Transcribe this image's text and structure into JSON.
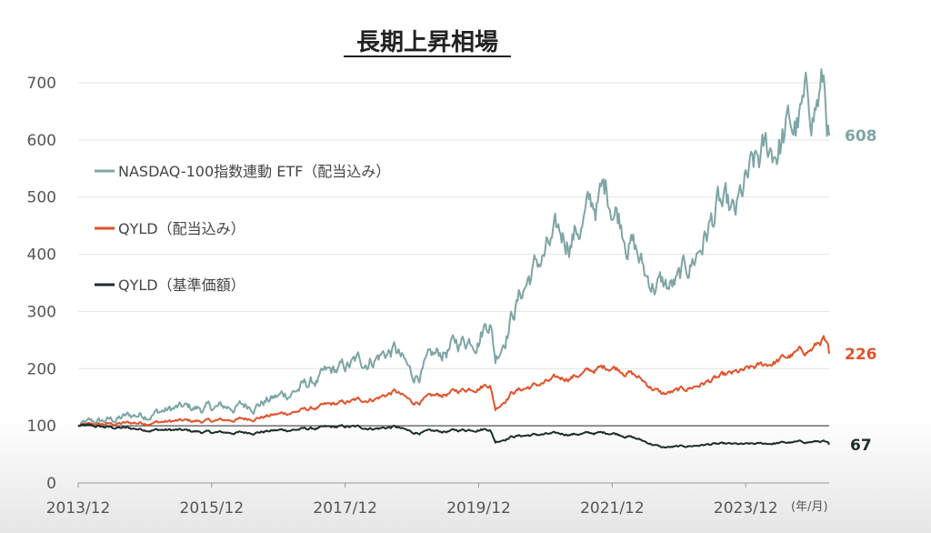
{
  "chart_data": {
    "type": "line",
    "title": "長期上昇相場",
    "x_tick_labels": [
      "2013/12",
      "2015/12",
      "2017/12",
      "2019/12",
      "2021/12",
      "2023/12"
    ],
    "x_unit": "(年/月)",
    "ylim": [
      0,
      700
    ],
    "y_ticks": [
      0,
      100,
      200,
      300,
      400,
      500,
      600,
      700
    ],
    "grid": "horizontal",
    "reference_line": 100,
    "series": [
      {
        "name": "NASDAQ-100指数連動 ETF（配当込み）",
        "color": "#7fa5a5",
        "end_label": "608",
        "points": [
          [
            "2013/12",
            100
          ],
          [
            "2014/06",
            110
          ],
          [
            "2014/12",
            122
          ],
          [
            "2015/06",
            130
          ],
          [
            "2015/12",
            130
          ],
          [
            "2016/06",
            135
          ],
          [
            "2016/12",
            150
          ],
          [
            "2017/06",
            175
          ],
          [
            "2017/12",
            200
          ],
          [
            "2018/06",
            225
          ],
          [
            "2018/09",
            232
          ],
          [
            "2018/12",
            185
          ],
          [
            "2019/06",
            230
          ],
          [
            "2019/12",
            265
          ],
          [
            "2020/02",
            295
          ],
          [
            "2020/03",
            220
          ],
          [
            "2020/06",
            300
          ],
          [
            "2020/09",
            360
          ],
          [
            "2020/12",
            400
          ],
          [
            "2021/06",
            450
          ],
          [
            "2021/11",
            510
          ],
          [
            "2021/12",
            500
          ],
          [
            "2022/03",
            440
          ],
          [
            "2022/06",
            360
          ],
          [
            "2022/10",
            340
          ],
          [
            "2022/12",
            345
          ],
          [
            "2023/03",
            400
          ],
          [
            "2023/07",
            480
          ],
          [
            "2023/10",
            450
          ],
          [
            "2023/12",
            510
          ],
          [
            "2024/03",
            560
          ],
          [
            "2024/07",
            610
          ],
          [
            "2024/09",
            620
          ],
          [
            "2024/12",
            660
          ],
          [
            "2025/02",
            695
          ],
          [
            "2025/03",
            608
          ]
        ]
      },
      {
        "name": "QYLD（配当込み）",
        "color": "#e2522a",
        "end_label": "226",
        "points": [
          [
            "2013/12",
            100
          ],
          [
            "2014/06",
            103
          ],
          [
            "2014/12",
            106
          ],
          [
            "2015/06",
            108
          ],
          [
            "2015/12",
            108
          ],
          [
            "2016/06",
            112
          ],
          [
            "2016/12",
            120
          ],
          [
            "2017/06",
            130
          ],
          [
            "2017/12",
            140
          ],
          [
            "2018/06",
            150
          ],
          [
            "2018/09",
            160
          ],
          [
            "2018/12",
            140
          ],
          [
            "2019/06",
            155
          ],
          [
            "2019/12",
            170
          ],
          [
            "2020/02",
            175
          ],
          [
            "2020/03",
            130
          ],
          [
            "2020/06",
            160
          ],
          [
            "2020/12",
            175
          ],
          [
            "2021/06",
            190
          ],
          [
            "2021/12",
            205
          ],
          [
            "2022/03",
            195
          ],
          [
            "2022/06",
            175
          ],
          [
            "2022/09",
            155
          ],
          [
            "2022/12",
            160
          ],
          [
            "2023/06",
            180
          ],
          [
            "2023/12",
            195
          ],
          [
            "2024/06",
            215
          ],
          [
            "2024/12",
            235
          ],
          [
            "2025/02",
            252
          ],
          [
            "2025/03",
            226
          ]
        ]
      },
      {
        "name": "QYLD（基準価額）",
        "color": "#1e2b2b",
        "end_label": "67",
        "points": [
          [
            "2013/12",
            100
          ],
          [
            "2014/06",
            97
          ],
          [
            "2014/12",
            94
          ],
          [
            "2015/06",
            92
          ],
          [
            "2015/12",
            88
          ],
          [
            "2016/06",
            88
          ],
          [
            "2016/12",
            92
          ],
          [
            "2017/06",
            95
          ],
          [
            "2017/12",
            98
          ],
          [
            "2018/06",
            96
          ],
          [
            "2018/09",
            98
          ],
          [
            "2018/12",
            88
          ],
          [
            "2019/06",
            90
          ],
          [
            "2019/12",
            95
          ],
          [
            "2020/02",
            95
          ],
          [
            "2020/03",
            72
          ],
          [
            "2020/06",
            82
          ],
          [
            "2020/12",
            85
          ],
          [
            "2021/06",
            86
          ],
          [
            "2021/12",
            88
          ],
          [
            "2022/03",
            82
          ],
          [
            "2022/06",
            72
          ],
          [
            "2022/09",
            62
          ],
          [
            "2022/12",
            63
          ],
          [
            "2023/06",
            68
          ],
          [
            "2023/12",
            67
          ],
          [
            "2024/06",
            70
          ],
          [
            "2024/12",
            72
          ],
          [
            "2025/02",
            73
          ],
          [
            "2025/03",
            67
          ]
        ]
      }
    ]
  }
}
